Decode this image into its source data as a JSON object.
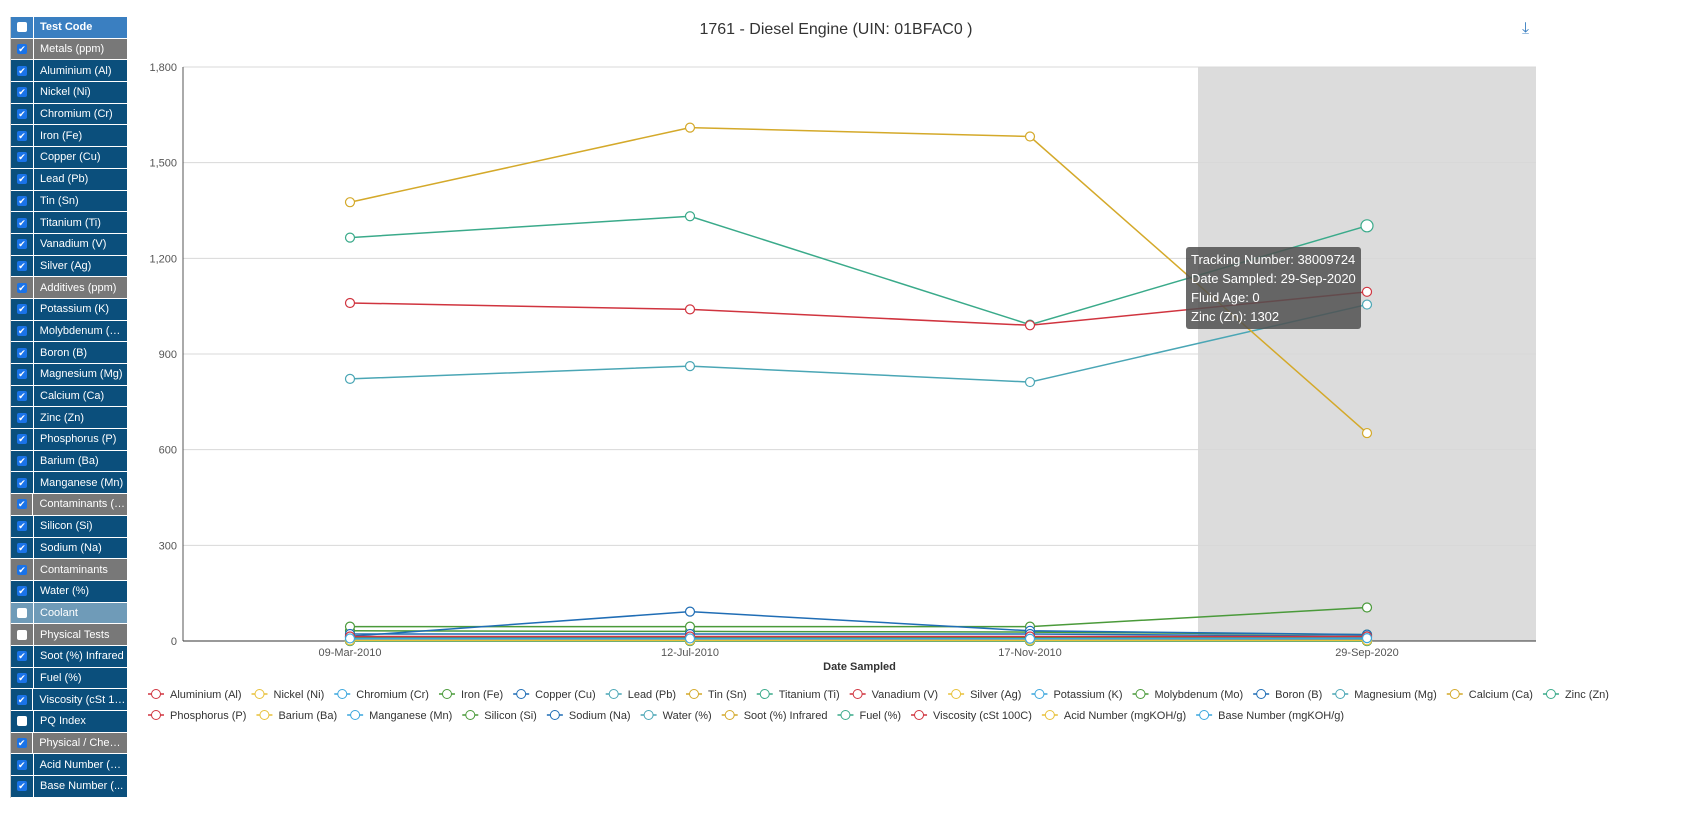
{
  "sidebar": {
    "header": "Test Code",
    "rows": [
      {
        "label": "Metals (ppm)",
        "type": "grp",
        "checked": true
      },
      {
        "label": "Aluminium (Al)",
        "checked": true
      },
      {
        "label": "Nickel (Ni)",
        "checked": true
      },
      {
        "label": "Chromium (Cr)",
        "checked": true
      },
      {
        "label": "Iron (Fe)",
        "checked": true
      },
      {
        "label": "Copper (Cu)",
        "checked": true
      },
      {
        "label": "Lead (Pb)",
        "checked": true
      },
      {
        "label": "Tin (Sn)",
        "checked": true
      },
      {
        "label": "Titanium (Ti)",
        "checked": true
      },
      {
        "label": "Vanadium (V)",
        "checked": true
      },
      {
        "label": "Silver (Ag)",
        "checked": true
      },
      {
        "label": "Additives (ppm)",
        "type": "grp",
        "checked": true
      },
      {
        "label": "Potassium (K)",
        "checked": true
      },
      {
        "label": "Molybdenum (Mo)",
        "checked": true
      },
      {
        "label": "Boron (B)",
        "checked": true
      },
      {
        "label": "Magnesium (Mg)",
        "checked": true
      },
      {
        "label": "Calcium (Ca)",
        "checked": true
      },
      {
        "label": "Zinc (Zn)",
        "checked": true
      },
      {
        "label": "Phosphorus (P)",
        "checked": true
      },
      {
        "label": "Barium (Ba)",
        "checked": true
      },
      {
        "label": "Manganese (Mn)",
        "checked": true
      },
      {
        "label": "Contaminants (p...",
        "type": "grp",
        "checked": true
      },
      {
        "label": "Silicon (Si)",
        "checked": true
      },
      {
        "label": "Sodium (Na)",
        "checked": true
      },
      {
        "label": "Contaminants",
        "type": "grp",
        "checked": true
      },
      {
        "label": "Water (%)",
        "checked": true
      },
      {
        "label": "Coolant",
        "type": "cool",
        "checked": false
      },
      {
        "label": "Physical Tests",
        "type": "grp",
        "checked": false
      },
      {
        "label": "Soot (%) Infrared",
        "checked": true
      },
      {
        "label": "Fuel (%)",
        "checked": true
      },
      {
        "label": "Viscosity (cSt 10...",
        "checked": true
      },
      {
        "label": "PQ Index",
        "checked": false
      },
      {
        "label": "Physical / Chemi...",
        "type": "grp",
        "checked": true
      },
      {
        "label": "Acid Number (m...",
        "checked": true
      },
      {
        "label": "Base Number (...",
        "checked": true
      }
    ]
  },
  "tooltip": {
    "lines": [
      "Tracking Number: 38009724",
      "Date Sampled: 29-Sep-2020",
      "Fluid Age: 0",
      "Zinc (Zn): 1302"
    ]
  },
  "icons": {
    "download": "download-icon"
  },
  "chart_data": {
    "type": "line",
    "title": "1761 - Diesel Engine (UIN: 01BFAC0 )",
    "xlabel": "Date Sampled",
    "ylabel": "",
    "categories": [
      "09-Mar-2010",
      "12-Jul-2010",
      "17-Nov-2010",
      "29-Sep-2020"
    ],
    "ylim": [
      0,
      1800
    ],
    "yticks": [
      0,
      300,
      600,
      900,
      1200,
      1500,
      1800
    ],
    "ytick_labels": [
      "0",
      "300",
      "600",
      "900",
      "1,200",
      "1,500",
      "1,800"
    ],
    "highlight_category": "29-Sep-2020",
    "legend_position": "bottom",
    "palette": [
      "#d0343f",
      "#e8c13a",
      "#3aa6dd",
      "#4a9a3a",
      "#1f6db5",
      "#4aa6b5",
      "#d4a92a",
      "#3aaa8a"
    ],
    "series": [
      {
        "name": "Aluminium (Al)",
        "values": [
          5,
          4,
          4,
          3
        ]
      },
      {
        "name": "Nickel (Ni)",
        "values": [
          1,
          1,
          1,
          0
        ]
      },
      {
        "name": "Chromium (Cr)",
        "values": [
          2,
          2,
          2,
          1
        ]
      },
      {
        "name": "Iron (Fe)",
        "values": [
          32,
          30,
          28,
          20
        ]
      },
      {
        "name": "Copper (Cu)",
        "values": [
          10,
          9,
          8,
          6
        ]
      },
      {
        "name": "Lead (Pb)",
        "values": [
          3,
          3,
          2,
          2
        ]
      },
      {
        "name": "Tin (Sn)",
        "values": [
          1,
          1,
          1,
          1
        ]
      },
      {
        "name": "Titanium (Ti)",
        "values": [
          0,
          0,
          0,
          0
        ]
      },
      {
        "name": "Vanadium (V)",
        "values": [
          0,
          0,
          0,
          0
        ]
      },
      {
        "name": "Silver (Ag)",
        "values": [
          0,
          0,
          0,
          0
        ]
      },
      {
        "name": "Potassium (K)",
        "values": [
          4,
          4,
          3,
          3
        ]
      },
      {
        "name": "Molybdenum (Mo)",
        "values": [
          45,
          45,
          45,
          105
        ]
      },
      {
        "name": "Boron (B)",
        "values": [
          15,
          92,
          32,
          20
        ]
      },
      {
        "name": "Magnesium (Mg)",
        "values": [
          822,
          862,
          812,
          1055
        ]
      },
      {
        "name": "Calcium (Ca)",
        "values": [
          1376,
          1610,
          1582,
          652
        ]
      },
      {
        "name": "Zinc (Zn)",
        "values": [
          1265,
          1332,
          992,
          1302
        ]
      },
      {
        "name": "Phosphorus (P)",
        "values": [
          1060,
          1040,
          990,
          1095
        ]
      },
      {
        "name": "Barium (Ba)",
        "values": [
          0,
          0,
          0,
          0
        ]
      },
      {
        "name": "Manganese (Mn)",
        "values": [
          1,
          1,
          1,
          1
        ]
      },
      {
        "name": "Silicon (Si)",
        "values": [
          12,
          12,
          11,
          10
        ]
      },
      {
        "name": "Sodium (Na)",
        "values": [
          22,
          22,
          22,
          15
        ]
      },
      {
        "name": "Water (%)",
        "values": [
          0,
          0,
          0,
          0
        ]
      },
      {
        "name": "Soot (%) Infrared",
        "values": [
          0,
          0,
          0,
          0
        ]
      },
      {
        "name": "Fuel (%)",
        "values": [
          0,
          0,
          0,
          0
        ]
      },
      {
        "name": "Viscosity (cSt 100C)",
        "values": [
          14,
          14,
          14,
          14
        ]
      },
      {
        "name": "Acid Number (mgKOH/g)",
        "values": [
          2,
          2,
          2,
          2
        ]
      },
      {
        "name": "Base Number (mgKOH/g)",
        "values": [
          8,
          8,
          7,
          9
        ]
      }
    ]
  }
}
